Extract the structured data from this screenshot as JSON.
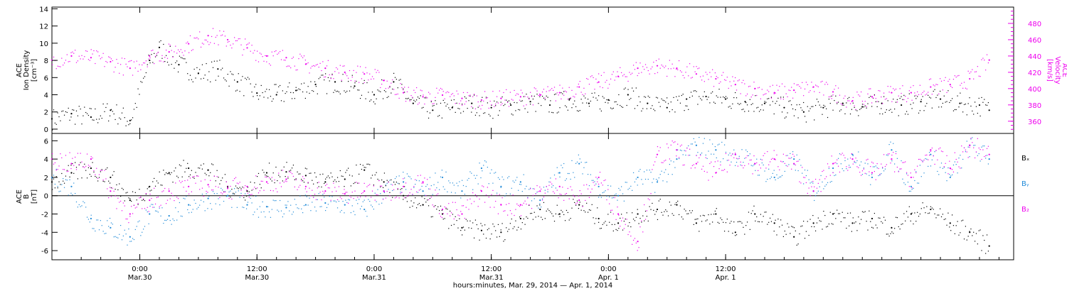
{
  "chart_data": [
    {
      "type": "scatter",
      "panel": "top",
      "ylabel_lines": [
        "ACE",
        "Ion Density",
        "[cm⁻³]"
      ],
      "y2label_lines": [
        "ACE",
        "Velocity",
        "[km/s]"
      ],
      "ylim": [
        -0.5,
        14.2
      ],
      "y2lim": [
        345,
        500
      ],
      "yticks": [
        0,
        2,
        4,
        6,
        8,
        10,
        12,
        14
      ],
      "y2ticks": [
        360,
        380,
        400,
        420,
        440,
        460,
        480
      ],
      "xlim": [
        -9,
        89.5
      ],
      "colors": {
        "density": "#000000",
        "velocity": "#ee00ee"
      },
      "series": [
        {
          "axis": "left",
          "color": "#000000",
          "x": [
            -9,
            -7,
            -5,
            -3,
            -1,
            1,
            2,
            4,
            6,
            8,
            10,
            12,
            14,
            16,
            18,
            20,
            22,
            24,
            26,
            28,
            30,
            32,
            34,
            36,
            38,
            40,
            42,
            44,
            46,
            48,
            50,
            52,
            54,
            56,
            58,
            60,
            62,
            64,
            66,
            68,
            70,
            72,
            74,
            76,
            78,
            80,
            82,
            84,
            86,
            87
          ],
          "values": [
            1.2,
            1.8,
            1.4,
            2.2,
            1.0,
            8.0,
            9.5,
            7.5,
            6.5,
            7.0,
            5.5,
            4.2,
            4.0,
            4.5,
            5.2,
            5.5,
            5.0,
            4.0,
            5.5,
            3.0,
            2.2,
            2.5,
            3.0,
            2.5,
            2.8,
            3.2,
            2.8,
            3.5,
            3.0,
            3.4,
            4.0,
            3.0,
            2.5,
            3.5,
            3.8,
            3.5,
            3.2,
            3.0,
            2.5,
            2.0,
            2.5,
            3.0,
            2.6,
            3.0,
            2.8,
            3.2,
            3.5,
            3.0,
            2.8,
            2.2
          ]
        },
        {
          "axis": "right",
          "color": "#ee00ee",
          "x": [
            -9,
            -7,
            -5,
            -3,
            -1,
            1,
            3,
            5,
            7,
            9,
            11,
            13,
            15,
            17,
            19,
            21,
            23,
            25,
            27,
            29,
            31,
            33,
            35,
            37,
            39,
            41,
            43,
            45,
            47,
            49,
            51,
            53,
            55,
            57,
            59,
            61,
            63,
            65,
            67,
            69,
            71,
            73,
            75,
            77,
            79,
            81,
            83,
            85,
            87
          ],
          "values": [
            435,
            440,
            438,
            433,
            425,
            440,
            445,
            455,
            465,
            460,
            450,
            440,
            438,
            430,
            425,
            420,
            418,
            410,
            395,
            390,
            392,
            388,
            386,
            388,
            390,
            392,
            395,
            402,
            408,
            415,
            425,
            428,
            425,
            418,
            412,
            405,
            400,
            395,
            398,
            402,
            396,
            385,
            390,
            395,
            395,
            402,
            405,
            412,
            435
          ]
        }
      ]
    },
    {
      "type": "scatter",
      "panel": "bottom",
      "ylabel_lines": [
        "ACE",
        "B",
        "[nT]"
      ],
      "ylim": [
        -7.0,
        6.8
      ],
      "yticks": [
        -6,
        -4,
        -2,
        0,
        2,
        4,
        6
      ],
      "xlim": [
        -9,
        89.5
      ],
      "legend": [
        "Bₓ",
        "Bᵧ",
        "B₂"
      ],
      "legend_colors": [
        "#000000",
        "#1f8ad8",
        "#ee00ee"
      ],
      "series": [
        {
          "name": "Bx",
          "color": "#000000",
          "x": [
            -9,
            -7,
            -5,
            -3,
            -1,
            1,
            3,
            5,
            7,
            9,
            11,
            13,
            15,
            17,
            19,
            21,
            23,
            25,
            27,
            29,
            31,
            33,
            35,
            37,
            39,
            41,
            43,
            45,
            47,
            49,
            51,
            53,
            55,
            57,
            59,
            61,
            63,
            65,
            67,
            69,
            71,
            73,
            75,
            77,
            79,
            81,
            83,
            85,
            87
          ],
          "values": [
            1.5,
            2.5,
            3.0,
            2.0,
            -0.5,
            1.0,
            2.5,
            3.0,
            2.8,
            1.0,
            0.5,
            2.5,
            2.6,
            2.2,
            1.5,
            1.8,
            2.8,
            1.5,
            0.0,
            -1.0,
            -2.0,
            -3.5,
            -3.8,
            -4.0,
            -2.5,
            -1.5,
            -2.0,
            -1.0,
            -2.5,
            -3.0,
            -2.0,
            -1.5,
            -1.0,
            -3.0,
            -2.0,
            -4.0,
            -2.0,
            -3.0,
            -4.5,
            -3.0,
            -2.0,
            -3.0,
            -2.5,
            -3.5,
            -2.0,
            -1.5,
            -3.0,
            -4.0,
            -5.5
          ]
        },
        {
          "name": "By",
          "color": "#1f8ad8",
          "x": [
            -9,
            -7,
            -5,
            -3,
            -1,
            1,
            3,
            5,
            7,
            9,
            11,
            13,
            15,
            17,
            19,
            21,
            23,
            25,
            27,
            29,
            31,
            33,
            35,
            37,
            39,
            41,
            43,
            45,
            47,
            49,
            51,
            53,
            55,
            57,
            59,
            61,
            63,
            65,
            67,
            69,
            71,
            73,
            75,
            77,
            79,
            81,
            83,
            85,
            87
          ],
          "values": [
            2.0,
            1.0,
            -2.5,
            -3.5,
            -4.5,
            -2.0,
            -2.2,
            -1.0,
            -0.3,
            0.0,
            -1.0,
            -1.2,
            -1.3,
            -1.0,
            -0.8,
            -1.0,
            -1.5,
            0.5,
            1.5,
            0.5,
            2.0,
            0.5,
            3.0,
            1.0,
            1.5,
            -0.5,
            2.5,
            3.5,
            1.0,
            0.0,
            2.0,
            1.5,
            4.0,
            5.5,
            5.0,
            4.5,
            3.5,
            2.0,
            4.0,
            0.5,
            3.0,
            4.5,
            2.0,
            5.0,
            1.0,
            4.5,
            2.0,
            5.5,
            4.0
          ]
        },
        {
          "name": "Bz",
          "color": "#ee00ee",
          "x": [
            -9,
            -7,
            -5,
            -3,
            -1,
            1,
            3,
            5,
            7,
            9,
            11,
            13,
            15,
            17,
            19,
            21,
            23,
            25,
            27,
            29,
            31,
            33,
            35,
            37,
            39,
            41,
            43,
            45,
            47,
            49,
            51,
            53,
            55,
            57,
            59,
            61,
            63,
            65,
            67,
            69,
            71,
            73,
            75,
            77,
            79,
            81,
            83,
            85,
            87
          ],
          "values": [
            4.0,
            3.5,
            4.0,
            0.5,
            -2.0,
            -0.5,
            0.5,
            1.0,
            1.2,
            0.8,
            1.0,
            1.5,
            1.8,
            1.0,
            0.5,
            0.2,
            0.5,
            0.5,
            1.0,
            1.5,
            -1.5,
            -2.0,
            0.5,
            -1.0,
            -1.0,
            0.5,
            1.0,
            -0.5,
            2.0,
            -2.0,
            -5.0,
            4.5,
            5.0,
            3.5,
            2.5,
            4.5,
            3.5,
            4.0,
            3.5,
            0.5,
            3.5,
            4.0,
            2.5,
            4.0,
            2.0,
            5.0,
            3.0,
            5.5,
            4.5
          ]
        }
      ]
    }
  ],
  "x_axis": {
    "tick_hours": [
      0,
      12,
      24,
      36,
      48,
      60
    ],
    "tick_times": [
      "0:00",
      "12:00",
      "0:00",
      "12:00",
      "0:00",
      "12:00"
    ],
    "tick_dates": [
      "Mar.30",
      "Mar.30",
      "Mar.31",
      "Mar.31",
      "Apr. 1",
      "Apr. 1"
    ],
    "title": "hours:minutes, Mar. 29, 2014 — Apr.  1, 2014"
  }
}
